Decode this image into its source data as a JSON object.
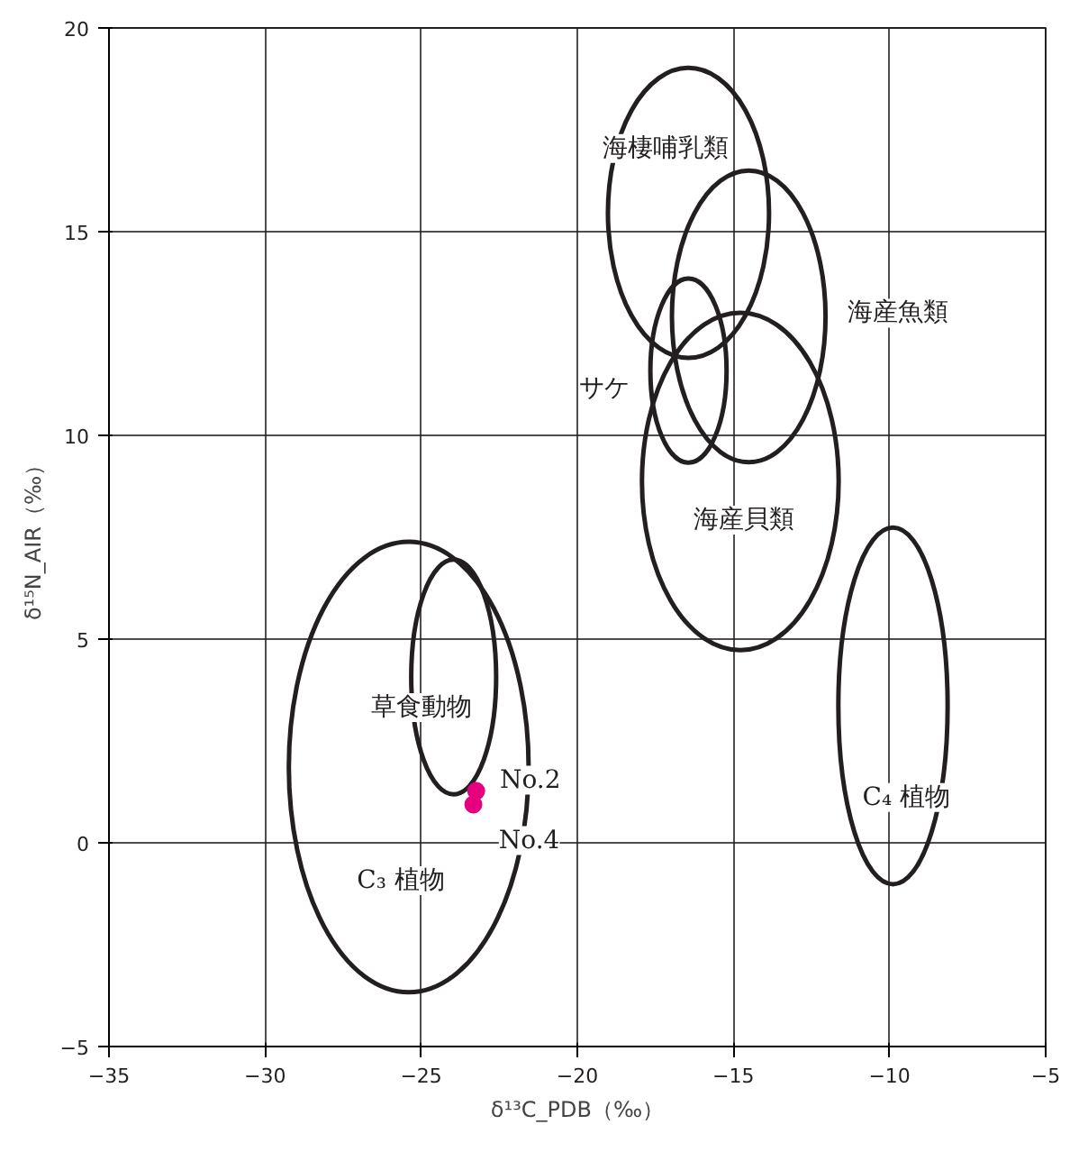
{
  "chart_data": {
    "type": "scatter",
    "xlabel": "δ¹³C_PDB（‰）",
    "ylabel": "δ¹⁵N_AIR（‰）",
    "xlim": [
      -35,
      -5
    ],
    "ylim": [
      -5,
      20
    ],
    "xticks": [
      -35,
      -30,
      -25,
      -20,
      -15,
      -10,
      -5
    ],
    "yticks": [
      -5,
      0,
      5,
      10,
      15,
      20
    ],
    "grid": true,
    "marker": "circle",
    "series": [
      {
        "color": "#e4007f",
        "x": [
          -23.24,
          -23.33
        ],
        "values": [
          1.27,
          0.94
        ]
      }
    ],
    "annotations": [
      "海棲哺乳類",
      "海産魚類",
      "サケ",
      "海産貝類",
      "草食動物",
      "C₃ 植物",
      "C₄ 植物",
      {
        "text": "No.2",
        "x": -23.24,
        "y": 1.27
      },
      {
        "text": "No.4",
        "x": -23.33,
        "y": 0.94
      }
    ]
  }
}
